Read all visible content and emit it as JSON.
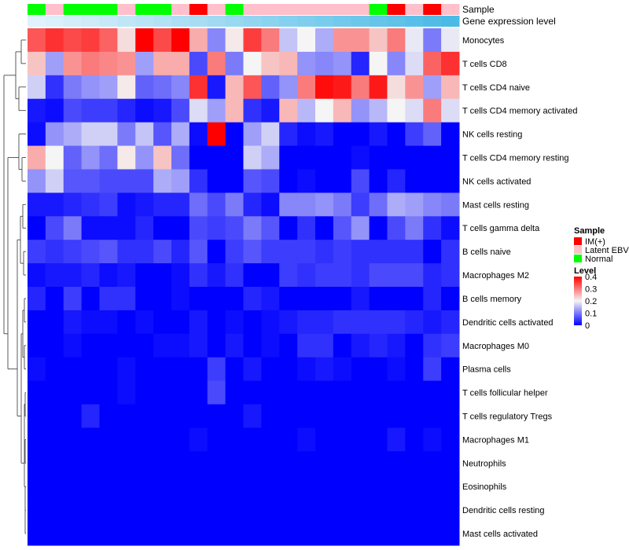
{
  "chart_data": {
    "type": "heatmap",
    "title": "",
    "annotation_labels": [
      "Sample",
      "Gene expression level"
    ],
    "rows": [
      "Monocytes",
      "T cells CD8",
      "T cells CD4 naive",
      "T cells CD4 memory activated",
      "NK cells resting",
      "T cells CD4 memory resting",
      "NK cells activated",
      "Mast cells resting",
      "T cells gamma delta",
      "B cells naive",
      "Macrophages M2",
      "B cells memory",
      "Dendritic cells activated",
      "Macrophages M0",
      "Plasma cells",
      "T cells follicular helper",
      "T cells regulatory  Tregs",
      "Macrophages M1",
      "Neutrophils",
      "Eosinophils",
      "Dendritic cells resting",
      "Mast cells activated"
    ],
    "sample_groups": [
      "Normal",
      "Latent EBV",
      "Normal",
      "Normal",
      "Normal",
      "Latent EBV",
      "Normal",
      "Normal",
      "Latent EBV",
      "IM(+)",
      "Latent EBV",
      "Normal",
      "Latent EBV",
      "Latent EBV",
      "Latent EBV",
      "Latent EBV",
      "Latent EBV",
      "Latent EBV",
      "Latent EBV",
      "Normal",
      "IM(+)",
      "Latent EBV",
      "IM(+)",
      "Latent EBV"
    ],
    "expression_gradient": [
      0.0,
      0.04,
      0.09,
      0.13,
      0.17,
      0.22,
      0.26,
      0.3,
      0.35,
      0.39,
      0.43,
      0.48,
      0.52,
      0.57,
      0.61,
      0.65,
      0.7,
      0.74,
      0.78,
      0.83,
      0.87,
      0.91,
      0.96,
      1.0
    ],
    "values": [
      [
        0.33,
        0.36,
        0.34,
        0.35,
        0.32,
        0.22,
        0.4,
        0.34,
        0.4,
        0.26,
        0.11,
        0.21,
        0.35,
        0.3,
        0.16,
        0.2,
        0.14,
        0.28,
        0.28,
        0.24,
        0.3,
        0.19,
        0.1,
        0.19
      ],
      [
        0.24,
        0.13,
        0.28,
        0.3,
        0.29,
        0.28,
        0.13,
        0.26,
        0.26,
        0.06,
        0.3,
        0.1,
        0.2,
        0.24,
        0.25,
        0.12,
        0.11,
        0.12,
        0.03,
        0.2,
        0.11,
        0.18,
        0.32,
        0.36
      ],
      [
        0.17,
        0.04,
        0.1,
        0.12,
        0.13,
        0.21,
        0.08,
        0.09,
        0.11,
        0.36,
        0.02,
        0.25,
        0.33,
        0.08,
        0.12,
        0.3,
        0.39,
        0.38,
        0.3,
        0.38,
        0.22,
        0.28,
        0.13,
        0.25
      ],
      [
        0.02,
        0.01,
        0.06,
        0.05,
        0.05,
        0.03,
        0.01,
        0.02,
        0.06,
        0.18,
        0.13,
        0.25,
        0.04,
        0.02,
        0.25,
        0.15,
        0.2,
        0.25,
        0.12,
        0.15,
        0.2,
        0.18,
        0.3,
        0.18
      ],
      [
        0.01,
        0.12,
        0.14,
        0.17,
        0.17,
        0.1,
        0.16,
        0.07,
        0.14,
        0.01,
        0.4,
        0.0,
        0.13,
        0.17,
        0.03,
        0.01,
        0.02,
        0.0,
        0.0,
        0.02,
        0.0,
        0.05,
        0.08,
        0.0
      ],
      [
        0.26,
        0.2,
        0.08,
        0.12,
        0.09,
        0.21,
        0.12,
        0.24,
        0.09,
        0.0,
        0.0,
        0.0,
        0.17,
        0.14,
        0.0,
        0.0,
        0.0,
        0.0,
        0.01,
        0.0,
        0.0,
        0.0,
        0.0,
        0.0
      ],
      [
        0.12,
        0.17,
        0.07,
        0.07,
        0.06,
        0.06,
        0.06,
        0.14,
        0.13,
        0.04,
        0.0,
        0.0,
        0.07,
        0.06,
        0.0,
        0.01,
        0.0,
        0.0,
        0.06,
        0.0,
        0.03,
        0.0,
        0.0,
        0.0
      ],
      [
        0.02,
        0.02,
        0.03,
        0.04,
        0.05,
        0.01,
        0.02,
        0.03,
        0.03,
        0.09,
        0.06,
        0.1,
        0.03,
        0.01,
        0.11,
        0.11,
        0.12,
        0.1,
        0.05,
        0.09,
        0.14,
        0.13,
        0.11,
        0.1
      ],
      [
        0.0,
        0.06,
        0.1,
        0.01,
        0.01,
        0.01,
        0.03,
        0.0,
        0.0,
        0.06,
        0.05,
        0.06,
        0.1,
        0.07,
        0.0,
        0.04,
        0.0,
        0.07,
        0.12,
        0.0,
        0.06,
        0.1,
        0.04,
        0.01
      ],
      [
        0.05,
        0.04,
        0.05,
        0.06,
        0.07,
        0.04,
        0.04,
        0.06,
        0.03,
        0.07,
        0.0,
        0.05,
        0.07,
        0.05,
        0.05,
        0.05,
        0.04,
        0.05,
        0.04,
        0.04,
        0.04,
        0.04,
        0.0,
        0.04
      ],
      [
        0.01,
        0.02,
        0.02,
        0.03,
        0.01,
        0.02,
        0.0,
        0.0,
        0.01,
        0.04,
        0.02,
        0.04,
        0.0,
        0.0,
        0.05,
        0.04,
        0.05,
        0.05,
        0.04,
        0.06,
        0.06,
        0.06,
        0.03,
        0.04
      ],
      [
        0.03,
        0.0,
        0.05,
        0.0,
        0.04,
        0.04,
        0.0,
        0.0,
        0.01,
        0.0,
        0.0,
        0.0,
        0.03,
        0.02,
        0.0,
        0.0,
        0.0,
        0.0,
        0.02,
        0.0,
        0.0,
        0.0,
        0.03,
        0.0
      ],
      [
        0.0,
        0.0,
        0.02,
        0.01,
        0.01,
        0.0,
        0.01,
        0.0,
        0.0,
        0.02,
        0.0,
        0.01,
        0.0,
        0.01,
        0.02,
        0.03,
        0.03,
        0.04,
        0.04,
        0.04,
        0.04,
        0.03,
        0.02,
        0.03
      ],
      [
        0.0,
        0.0,
        0.01,
        0.0,
        0.0,
        0.0,
        0.0,
        0.01,
        0.01,
        0.02,
        0.0,
        0.02,
        0.0,
        0.01,
        0.0,
        0.04,
        0.04,
        0.0,
        0.02,
        0.03,
        0.02,
        0.0,
        0.04,
        0.05
      ],
      [
        0.01,
        0.0,
        0.0,
        0.0,
        0.0,
        0.01,
        0.0,
        0.0,
        0.0,
        0.0,
        0.05,
        0.0,
        0.02,
        0.0,
        0.0,
        0.01,
        0.02,
        0.01,
        0.0,
        0.0,
        0.01,
        0.0,
        0.05,
        0.0
      ],
      [
        0.0,
        0.0,
        0.0,
        0.0,
        0.0,
        0.01,
        0.0,
        0.0,
        0.0,
        0.0,
        0.06,
        0.0,
        0.0,
        0.0,
        0.0,
        0.0,
        0.0,
        0.0,
        0.0,
        0.0,
        0.0,
        0.0,
        0.0,
        0.0
      ],
      [
        0.0,
        0.0,
        0.0,
        0.03,
        0.0,
        0.0,
        0.0,
        0.0,
        0.0,
        0.0,
        0.0,
        0.0,
        0.02,
        0.0,
        0.0,
        0.0,
        0.0,
        0.0,
        0.0,
        0.0,
        0.0,
        0.0,
        0.0,
        0.0
      ],
      [
        0.0,
        0.0,
        0.0,
        0.0,
        0.0,
        0.0,
        0.0,
        0.0,
        0.0,
        0.01,
        0.0,
        0.0,
        0.0,
        0.0,
        0.0,
        0.01,
        0.0,
        0.0,
        0.0,
        0.0,
        0.02,
        0.0,
        0.01,
        0.0
      ],
      [
        0.0,
        0.0,
        0.0,
        0.0,
        0.0,
        0.0,
        0.0,
        0.0,
        0.0,
        0.0,
        0.0,
        0.0,
        0.0,
        0.0,
        0.0,
        0.0,
        0.0,
        0.0,
        0.0,
        0.0,
        0.0,
        0.0,
        0.0,
        0.0
      ],
      [
        0.0,
        0.0,
        0.0,
        0.0,
        0.0,
        0.0,
        0.0,
        0.0,
        0.0,
        0.0,
        0.0,
        0.0,
        0.0,
        0.0,
        0.0,
        0.0,
        0.0,
        0.0,
        0.0,
        0.0,
        0.0,
        0.0,
        0.0,
        0.0
      ],
      [
        0.0,
        0.0,
        0.0,
        0.0,
        0.0,
        0.0,
        0.0,
        0.0,
        0.0,
        0.0,
        0.0,
        0.0,
        0.0,
        0.0,
        0.0,
        0.0,
        0.0,
        0.0,
        0.0,
        0.0,
        0.0,
        0.0,
        0.0,
        0.0
      ],
      [
        0.0,
        0.0,
        0.0,
        0.0,
        0.0,
        0.0,
        0.0,
        0.0,
        0.0,
        0.0,
        0.0,
        0.0,
        0.0,
        0.0,
        0.0,
        0.0,
        0.0,
        0.0,
        0.0,
        0.0,
        0.0,
        0.0,
        0.0,
        0.0
      ]
    ],
    "scale": {
      "min": 0,
      "max": 0.4,
      "ticks": [
        "0",
        "0.1",
        "0.2",
        "0.3",
        "0.4"
      ],
      "colors": {
        "low": "#0000ff",
        "mid": "#f5f5f5",
        "high": "#ff0000"
      }
    },
    "legend": {
      "sample_title": "Sample",
      "sample_items": [
        {
          "label": "IM(+)",
          "color": "#ff0000"
        },
        {
          "label": "Latent EBV",
          "color": "#ffc0cb"
        },
        {
          "label": "Normal",
          "color": "#00ff00"
        }
      ],
      "level_title": "Level",
      "placement": "right"
    },
    "grid": false
  }
}
